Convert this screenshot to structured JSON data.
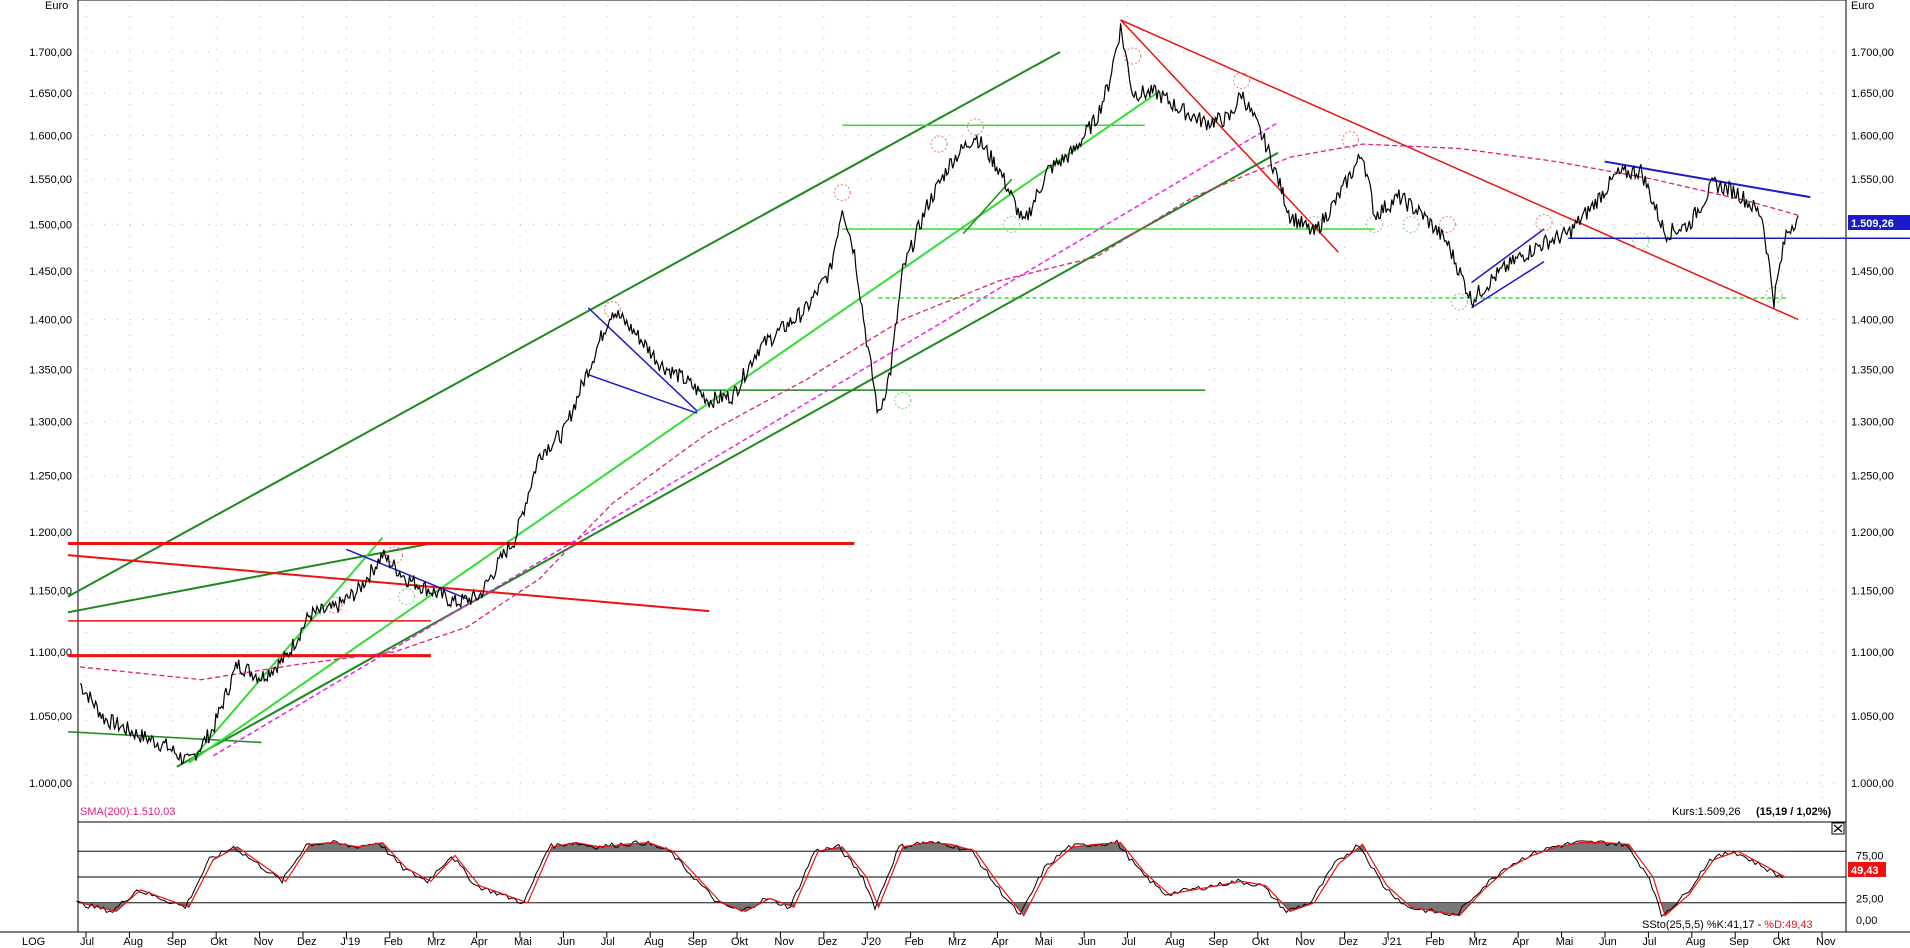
{
  "chart_data": {
    "type": "line",
    "scale": "log",
    "currency_label": "Euro",
    "y_ticks": [
      "1.700,00",
      "1.650,00",
      "1.600,00",
      "1.550,00",
      "1.500,00",
      "1.450,00",
      "1.400,00",
      "1.350,00",
      "1.300,00",
      "1.250,00",
      "1.200,00",
      "1.150,00",
      "1.100,00",
      "1.050,00",
      "1.000,00"
    ],
    "y_tick_values": [
      1700,
      1650,
      1600,
      1550,
      1500,
      1450,
      1400,
      1350,
      1300,
      1250,
      1200,
      1150,
      1100,
      1050,
      1000
    ],
    "ylim": [
      985,
      1750
    ],
    "x_ticks": [
      "Jul",
      "Aug",
      "Sep",
      "Okt",
      "Nov",
      "Dez",
      "J'19",
      "Feb",
      "Mrz",
      "Apr",
      "Mai",
      "Jun",
      "Jul",
      "Aug",
      "Sep",
      "Okt",
      "Nov",
      "Dez",
      "J'20",
      "Feb",
      "Mrz",
      "Apr",
      "Mai",
      "Jun",
      "Jul",
      "Aug",
      "Sep",
      "Okt",
      "Nov",
      "Dez",
      "J'21",
      "Feb",
      "Mrz",
      "Apr",
      "Mai",
      "Jun",
      "Jul",
      "Aug",
      "Sep",
      "Okt",
      "Nov"
    ],
    "price_series_keyframes": [
      [
        0,
        1075
      ],
      [
        2,
        1048
      ],
      [
        5,
        1035
      ],
      [
        7,
        1028
      ],
      [
        9,
        1015
      ],
      [
        11,
        1040
      ],
      [
        13,
        1090
      ],
      [
        15,
        1080
      ],
      [
        17,
        1095
      ],
      [
        19,
        1130
      ],
      [
        21,
        1135
      ],
      [
        23,
        1150
      ],
      [
        25,
        1180
      ],
      [
        27,
        1160
      ],
      [
        29,
        1150
      ],
      [
        31,
        1140
      ],
      [
        33,
        1145
      ],
      [
        35,
        1180
      ],
      [
        36,
        1195
      ],
      [
        38,
        1270
      ],
      [
        40,
        1290
      ],
      [
        42,
        1350
      ],
      [
        44,
        1410
      ],
      [
        46,
        1385
      ],
      [
        48,
        1355
      ],
      [
        50,
        1340
      ],
      [
        52,
        1320
      ],
      [
        54,
        1325
      ],
      [
        56,
        1370
      ],
      [
        58,
        1390
      ],
      [
        60,
        1410
      ],
      [
        62,
        1450
      ],
      [
        63,
        1520
      ],
      [
        64,
        1470
      ],
      [
        65,
        1380
      ],
      [
        66,
        1305
      ],
      [
        67,
        1350
      ],
      [
        68,
        1450
      ],
      [
        70,
        1520
      ],
      [
        72,
        1570
      ],
      [
        74,
        1600
      ],
      [
        76,
        1560
      ],
      [
        78,
        1500
      ],
      [
        80,
        1560
      ],
      [
        82,
        1580
      ],
      [
        84,
        1620
      ],
      [
        85,
        1660
      ],
      [
        86,
        1730
      ],
      [
        87,
        1650
      ],
      [
        89,
        1650
      ],
      [
        91,
        1630
      ],
      [
        93,
        1615
      ],
      [
        95,
        1620
      ],
      [
        96,
        1650
      ],
      [
        98,
        1590
      ],
      [
        100,
        1510
      ],
      [
        102,
        1490
      ],
      [
        104,
        1530
      ],
      [
        106,
        1580
      ],
      [
        107,
        1510
      ],
      [
        109,
        1530
      ],
      [
        111,
        1510
      ],
      [
        113,
        1480
      ],
      [
        115,
        1420
      ],
      [
        117,
        1445
      ],
      [
        119,
        1465
      ],
      [
        121,
        1480
      ],
      [
        123,
        1490
      ],
      [
        125,
        1520
      ],
      [
        127,
        1555
      ],
      [
        129,
        1560
      ],
      [
        131,
        1490
      ],
      [
        133,
        1500
      ],
      [
        135,
        1545
      ],
      [
        137,
        1535
      ],
      [
        139,
        1510
      ],
      [
        140,
        1420
      ],
      [
        141,
        1490
      ],
      [
        142,
        1509.26
      ]
    ],
    "sma200_label": "SMA(200):1.510,03",
    "sma200_keyframes": [
      [
        0,
        1088
      ],
      [
        10,
        1078
      ],
      [
        18,
        1090
      ],
      [
        26,
        1100
      ],
      [
        32,
        1120
      ],
      [
        38,
        1160
      ],
      [
        44,
        1225
      ],
      [
        52,
        1290
      ],
      [
        60,
        1340
      ],
      [
        68,
        1400
      ],
      [
        76,
        1440
      ],
      [
        84,
        1465
      ],
      [
        92,
        1530
      ],
      [
        100,
        1575
      ],
      [
        106,
        1590
      ],
      [
        114,
        1585
      ],
      [
        122,
        1570
      ],
      [
        130,
        1550
      ],
      [
        138,
        1525
      ],
      [
        142,
        1510
      ]
    ],
    "last_price_badge": "1.509,26",
    "kurs_label": "Kurs:1.509,26",
    "kurs_change": "(15,19 / 1,02%)",
    "stochastic": {
      "label": "SSto(25,5,5) %K:41,17 - %D:49,43",
      "k_label_part": "SSto(25,5,5) %K:41,17 - ",
      "d_label_part": "%D:49,43",
      "ticks": [
        "75,00",
        "25,00",
        "0,00"
      ],
      "tick_values": [
        75,
        25,
        0
      ],
      "level_lines": [
        80,
        50,
        20
      ],
      "last_d_badge": "49,43",
      "keyframes": [
        [
          0,
          20
        ],
        [
          3,
          10
        ],
        [
          5,
          35
        ],
        [
          7,
          25
        ],
        [
          9,
          15
        ],
        [
          11,
          70
        ],
        [
          13,
          85
        ],
        [
          15,
          65
        ],
        [
          17,
          45
        ],
        [
          19,
          88
        ],
        [
          21,
          90
        ],
        [
          23,
          85
        ],
        [
          25,
          90
        ],
        [
          27,
          60
        ],
        [
          29,
          45
        ],
        [
          31,
          75
        ],
        [
          33,
          40
        ],
        [
          35,
          30
        ],
        [
          37,
          20
        ],
        [
          39,
          85
        ],
        [
          41,
          90
        ],
        [
          43,
          85
        ],
        [
          45,
          88
        ],
        [
          47,
          90
        ],
        [
          49,
          80
        ],
        [
          51,
          50
        ],
        [
          53,
          20
        ],
        [
          55,
          10
        ],
        [
          57,
          25
        ],
        [
          59,
          15
        ],
        [
          61,
          80
        ],
        [
          63,
          85
        ],
        [
          65,
          50
        ],
        [
          66,
          15
        ],
        [
          68,
          85
        ],
        [
          70,
          90
        ],
        [
          72,
          88
        ],
        [
          74,
          80
        ],
        [
          76,
          40
        ],
        [
          78,
          5
        ],
        [
          80,
          60
        ],
        [
          82,
          85
        ],
        [
          84,
          88
        ],
        [
          86,
          90
        ],
        [
          88,
          55
        ],
        [
          90,
          30
        ],
        [
          92,
          35
        ],
        [
          94,
          40
        ],
        [
          96,
          45
        ],
        [
          98,
          40
        ],
        [
          100,
          10
        ],
        [
          102,
          20
        ],
        [
          104,
          65
        ],
        [
          106,
          88
        ],
        [
          108,
          40
        ],
        [
          110,
          15
        ],
        [
          112,
          10
        ],
        [
          114,
          5
        ],
        [
          116,
          35
        ],
        [
          118,
          60
        ],
        [
          120,
          75
        ],
        [
          122,
          85
        ],
        [
          124,
          90
        ],
        [
          126,
          90
        ],
        [
          128,
          88
        ],
        [
          130,
          50
        ],
        [
          131,
          5
        ],
        [
          133,
          30
        ],
        [
          135,
          70
        ],
        [
          137,
          80
        ],
        [
          139,
          65
        ],
        [
          141,
          49.43
        ]
      ]
    },
    "footer_left": "LOG",
    "colors": {
      "price": "#000000",
      "sma200": "#e0207c",
      "trend_dark_green": "#1a8a1a",
      "trend_light_green": "#33dd33",
      "resistance_red": "#ee1111",
      "pattern_blue": "#1a1acc",
      "magenta_dashed": "#ee22ee",
      "badge_blue": "#1a1acc",
      "badge_red": "#ee1111",
      "sto_k": "#000000",
      "sto_d": "#ee1111",
      "sto_fill": "#777777",
      "grid_dot": "#bbbbbb"
    }
  }
}
